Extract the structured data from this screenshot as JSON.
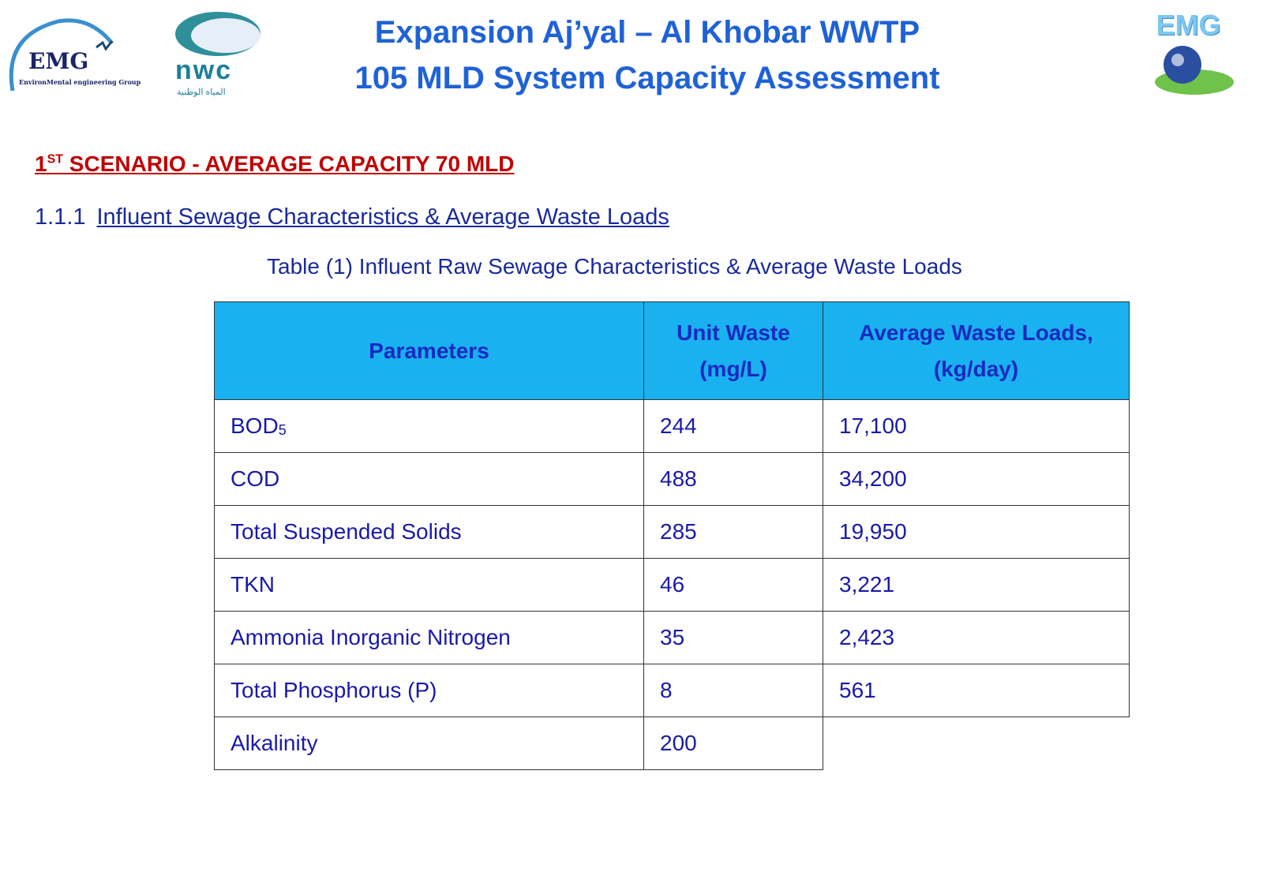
{
  "header": {
    "title_line1": "Expansion Aj’yal – Al Khobar WWTP",
    "title_line2": "105 MLD System Capacity Assessment",
    "logos": {
      "emg_left": "EMG",
      "emg_left_sub": "EnvironMental engineering Group",
      "nwc": "nwc",
      "nwc_arabic": "المياه الوطنية",
      "emg_right": "EMG"
    }
  },
  "scenario": {
    "number": "1",
    "sup": "ST",
    "text": " SCENARIO - AVERAGE CAPACITY 70 MLD"
  },
  "section": {
    "number": "1.1.1",
    "title": "Influent Sewage Characteristics & Average Waste Loads"
  },
  "table": {
    "caption": "Table (1) Influent Raw Sewage Characteristics & Average Waste Loads",
    "headers": [
      "Parameters",
      "Unit Waste (mg/L)",
      "Average Waste Loads, (kg/day)"
    ],
    "rows": [
      {
        "param": "BOD",
        "param_sub": "5",
        "unit": "244",
        "load": "17,100"
      },
      {
        "param": "COD",
        "unit": "488",
        "load": "34,200"
      },
      {
        "param": "Total Suspended Solids",
        "unit": "285",
        "load": "19,950"
      },
      {
        "param": "TKN",
        "unit": "46",
        "load": "3,221"
      },
      {
        "param": "Ammonia Inorganic Nitrogen",
        "unit": "35",
        "load": "2,423"
      },
      {
        "param": "Total Phosphorus (P)",
        "unit": "8",
        "load": "561"
      },
      {
        "param": "Alkalinity",
        "unit": "200"
      }
    ]
  },
  "colors": {
    "title": "#1f62d6",
    "scenario": "#c00000",
    "text": "#1a2a9c",
    "header_bg": "#19b1ef"
  }
}
